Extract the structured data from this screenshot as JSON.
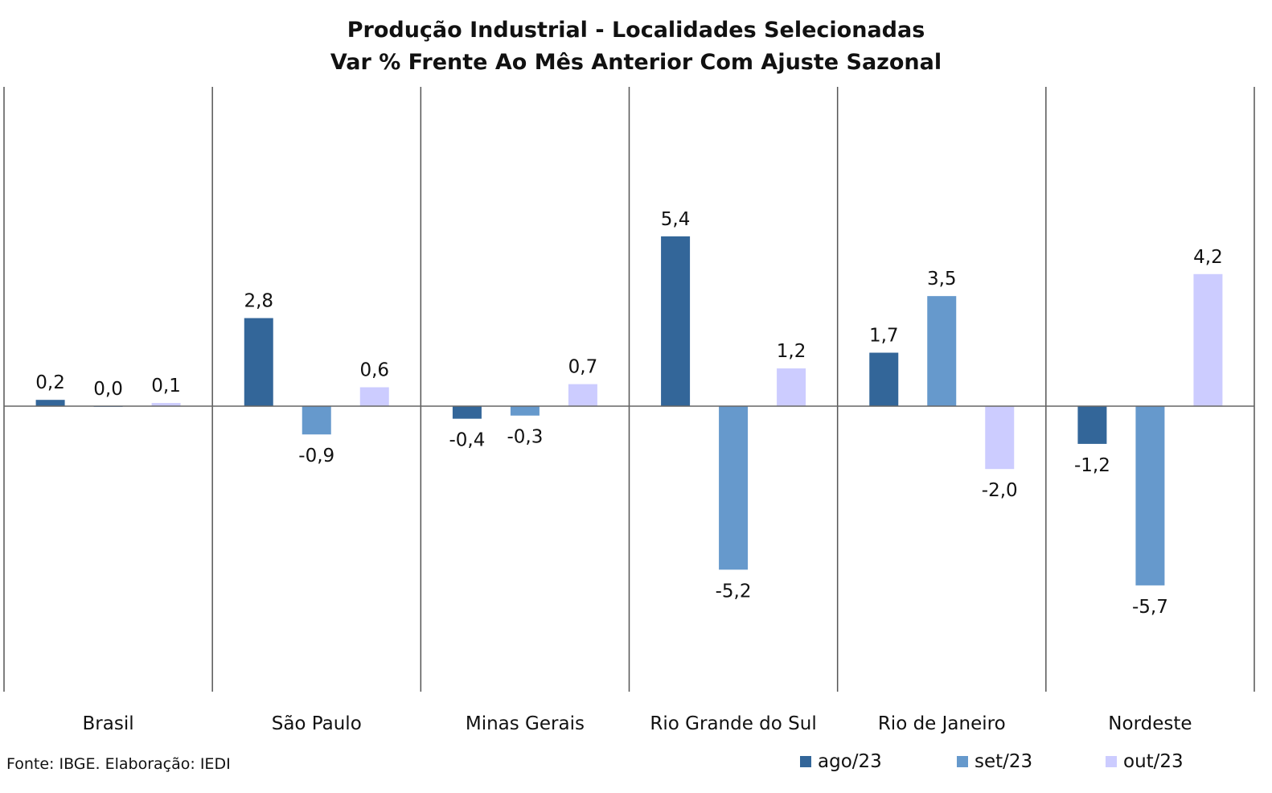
{
  "chart_data": {
    "type": "bar",
    "title": "Produção Industrial - Localidades Selecionadas",
    "subtitle": "Var % Frente Ao Mês Anterior Com Ajuste Sazonal",
    "categories": [
      "Brasil",
      "São Paulo",
      "Minas Gerais",
      "Rio Grande do Sul",
      "Rio de Janeiro",
      "Nordeste"
    ],
    "series": [
      {
        "name": "ago/23",
        "color": "#336699",
        "values": [
          0.2,
          2.8,
          -0.4,
          5.4,
          1.7,
          -1.2
        ],
        "labels": [
          "0,2",
          "2,8",
          "-0,4",
          "5,4",
          "1,7",
          "-1,2"
        ]
      },
      {
        "name": "set/23",
        "color": "#6699cc",
        "values": [
          0.0,
          -0.9,
          -0.3,
          -5.2,
          3.5,
          -5.7
        ],
        "labels": [
          "0,0",
          "-0,9",
          "-0,3",
          "-5,2",
          "3,5",
          "-5,7"
        ]
      },
      {
        "name": "out/23",
        "color": "#ccccff",
        "values": [
          0.1,
          0.6,
          0.7,
          1.2,
          -2.0,
          4.2
        ],
        "labels": [
          "0,1",
          "0,6",
          "0,7",
          "1,2",
          "-2,0",
          "4,2"
        ]
      }
    ],
    "ylim": [
      -9,
      10
    ],
    "grid": false,
    "category_separators": true,
    "legend_position": "bottom-right"
  },
  "source_note": "Fonte: IBGE. Elaboração: IEDI"
}
